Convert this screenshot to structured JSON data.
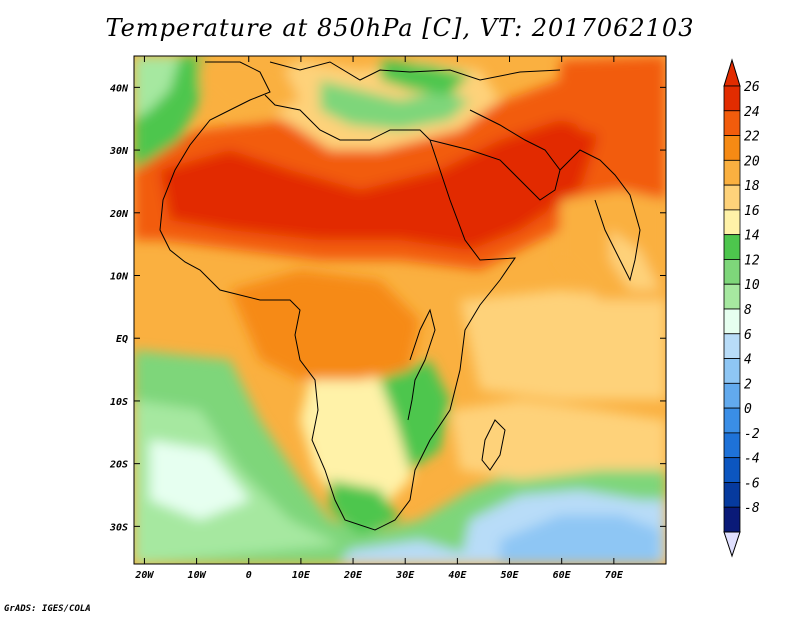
{
  "title": "Temperature at 850hPa [C], VT: 2017062103",
  "credit": "GrADS: IGES/COLA",
  "map": {
    "variable": "Temperature at 850hPa",
    "units": "C",
    "valid_time": "2017062103",
    "lon_range": [
      -22,
      80
    ],
    "lat_range": [
      -36,
      45
    ],
    "lat_ticks": [
      {
        "value": 40,
        "label": "40N"
      },
      {
        "value": 30,
        "label": "30N"
      },
      {
        "value": 20,
        "label": "20N"
      },
      {
        "value": 10,
        "label": "10N"
      },
      {
        "value": 0,
        "label": "EQ"
      },
      {
        "value": -10,
        "label": "10S"
      },
      {
        "value": -20,
        "label": "20S"
      },
      {
        "value": -30,
        "label": "30S"
      }
    ],
    "lon_ticks": [
      {
        "value": -20,
        "label": "20W"
      },
      {
        "value": -10,
        "label": "10W"
      },
      {
        "value": 0,
        "label": "0"
      },
      {
        "value": 10,
        "label": "10E"
      },
      {
        "value": 20,
        "label": "20E"
      },
      {
        "value": 30,
        "label": "30E"
      },
      {
        "value": 40,
        "label": "40E"
      },
      {
        "value": 50,
        "label": "50E"
      },
      {
        "value": 60,
        "label": "60E"
      },
      {
        "value": 70,
        "label": "70E"
      }
    ]
  },
  "colorbar": {
    "levels": [
      "26",
      "24",
      "22",
      "20",
      "18",
      "16",
      "14",
      "12",
      "10",
      "8",
      "6",
      "4",
      "2",
      "0",
      "-2",
      "-4",
      "-6",
      "-8"
    ],
    "colors": [
      "#e22c00",
      "#f25c0c",
      "#f68a14",
      "#fab040",
      "#fed27a",
      "#fff2a8",
      "#4dc64d",
      "#7ed67a",
      "#a6e8a0",
      "#e6fff0",
      "#b8dcf8",
      "#8ec6f4",
      "#62aaee",
      "#3a8ee6",
      "#1e72d8",
      "#0c56c0",
      "#063a9e",
      "#0a1a78"
    ],
    "max_color": "#e22c00",
    "min_color": "#e0e0ff"
  }
}
